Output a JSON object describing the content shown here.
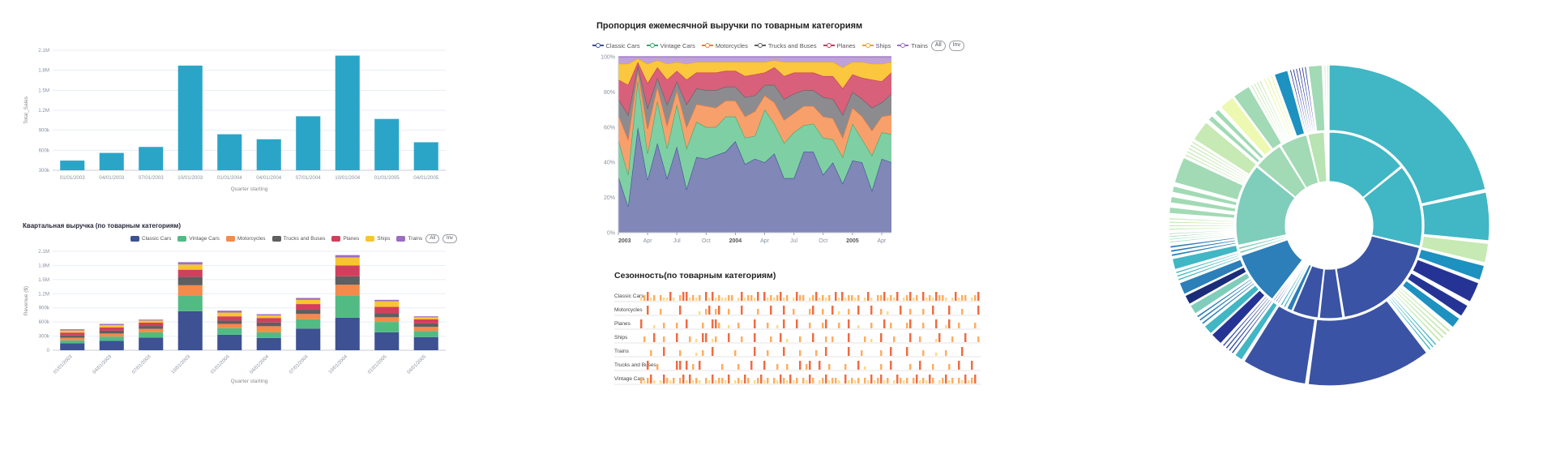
{
  "page": {
    "background": "#ffffff"
  },
  "legend_buttons": {
    "all": "All",
    "invert": "Inv"
  },
  "chart_data": [
    {
      "id": "quarterly-sales",
      "type": "bar",
      "title": "",
      "xlabel": "Quarter starting",
      "ylabel": "Total_Sales",
      "categories": [
        "01/01/2003",
        "04/01/2003",
        "07/01/2003",
        "10/01/2003",
        "01/01/2004",
        "04/01/2004",
        "07/01/2004",
        "10/01/2004",
        "01/01/2005",
        "04/01/2005"
      ],
      "values": [
        445000,
        560000,
        650000,
        1870000,
        840000,
        765000,
        1110000,
        2020000,
        1070000,
        720000
      ],
      "ylim": [
        300000,
        2100000
      ],
      "yticks": [
        {
          "v": 300000,
          "t": "300k"
        },
        {
          "v": 600000,
          "t": "600k"
        },
        {
          "v": 900000,
          "t": "900k"
        },
        {
          "v": 1200000,
          "t": "1.2M"
        },
        {
          "v": 1500000,
          "t": "1.5M"
        },
        {
          "v": 1800000,
          "t": "1.8M"
        },
        {
          "v": 2100000,
          "t": "2.1M"
        }
      ],
      "bar_color": "#2aa5c7",
      "grid": true
    },
    {
      "id": "quarterly-revenue",
      "type": "bar-stacked",
      "title": "Квартальная выручка (по товарным категориям)",
      "xlabel": "Quarter starting",
      "ylabel": "Revenue ($)",
      "categories": [
        "01/01/2003",
        "04/01/2003",
        "07/01/2003",
        "10/01/2003",
        "01/01/2004",
        "04/01/2004",
        "07/01/2004",
        "10/01/2004",
        "01/01/2005",
        "04/01/2005"
      ],
      "ylim": [
        0,
        2100000
      ],
      "yticks": [
        {
          "v": 0,
          "t": "0"
        },
        {
          "v": 300000,
          "t": "300k"
        },
        {
          "v": 600000,
          "t": "600k"
        },
        {
          "v": 900000,
          "t": "900k"
        },
        {
          "v": 1200000,
          "t": "1.2M"
        },
        {
          "v": 1500000,
          "t": "1.5M"
        },
        {
          "v": 1800000,
          "t": "1.8M"
        },
        {
          "v": 2100000,
          "t": "2.1M"
        }
      ],
      "series": [
        {
          "name": "Classic Cars",
          "color": "#3d5193",
          "values": [
            150000,
            200000,
            270000,
            830000,
            330000,
            260000,
            460000,
            690000,
            380000,
            280000
          ]
        },
        {
          "name": "Vintage Cars",
          "color": "#52bb84",
          "values": [
            60000,
            90000,
            110000,
            330000,
            140000,
            120000,
            200000,
            470000,
            220000,
            130000
          ]
        },
        {
          "name": "Motorcycles",
          "color": "#f58a4a",
          "values": [
            55000,
            65000,
            75000,
            220000,
            90000,
            130000,
            110000,
            230000,
            100000,
            85000
          ]
        },
        {
          "name": "Trucks and Buses",
          "color": "#5e5f61",
          "values": [
            50000,
            60000,
            60000,
            180000,
            70000,
            80000,
            90000,
            180000,
            90000,
            75000
          ]
        },
        {
          "name": "Planes",
          "color": "#d23f5c",
          "values": [
            60000,
            70000,
            70000,
            150000,
            90000,
            95000,
            120000,
            230000,
            130000,
            85000
          ]
        },
        {
          "name": "Ships",
          "color": "#f7c52f",
          "values": [
            45000,
            50000,
            45000,
            110000,
            80000,
            55000,
            90000,
            170000,
            120000,
            45000
          ]
        },
        {
          "name": "Trains",
          "color": "#9c6ec0",
          "values": [
            25000,
            25000,
            20000,
            50000,
            40000,
            25000,
            40000,
            50000,
            30000,
            20000
          ]
        }
      ],
      "legend_buttons": [
        "All",
        "Inv"
      ],
      "grid": true
    },
    {
      "id": "monthly-proportion",
      "type": "area",
      "title": "Пропорция ежемесячной выручки по товарным категориям",
      "x_ticks": [
        {
          "i": 0,
          "t": "2003",
          "bold": true
        },
        {
          "i": 3,
          "t": "Apr"
        },
        {
          "i": 6,
          "t": "Jul"
        },
        {
          "i": 9,
          "t": "Oct"
        },
        {
          "i": 12,
          "t": "2004",
          "bold": true
        },
        {
          "i": 15,
          "t": "Apr"
        },
        {
          "i": 18,
          "t": "Jul"
        },
        {
          "i": 21,
          "t": "Oct"
        },
        {
          "i": 24,
          "t": "2005",
          "bold": true
        },
        {
          "i": 27,
          "t": "Apr"
        }
      ],
      "y_ticks": [
        {
          "p": 0,
          "t": "0%"
        },
        {
          "p": 20,
          "t": "20%"
        },
        {
          "p": 40,
          "t": "40%"
        },
        {
          "p": 60,
          "t": "60%"
        },
        {
          "p": 80,
          "t": "80%"
        },
        {
          "p": 100,
          "t": "100%"
        }
      ],
      "series": [
        {
          "name": "Classic Cars",
          "fill": "#8187b7",
          "stroke": "#3f4e98",
          "values": [
            32,
            15,
            60,
            30,
            51,
            31,
            49,
            25,
            43,
            42,
            44,
            46,
            52,
            39,
            42,
            40,
            45,
            31,
            31,
            46,
            46,
            33,
            40,
            28,
            41,
            40,
            24,
            42,
            40
          ]
        },
        {
          "name": "Vintage Cars",
          "fill": "#7fcfa4",
          "stroke": "#3aa76d",
          "values": [
            21,
            18,
            27,
            15,
            24,
            17,
            24,
            23,
            20,
            18,
            16,
            20,
            14,
            15,
            13,
            30,
            17,
            20,
            26,
            15,
            16,
            21,
            13,
            15,
            21,
            13,
            20,
            15,
            16
          ]
        },
        {
          "name": "Motorcycles",
          "fill": "#f8a06b",
          "stroke": "#ef7b39",
          "values": [
            14,
            20,
            5,
            14,
            8,
            13,
            8,
            12,
            10,
            12,
            11,
            9,
            9,
            12,
            14,
            8,
            12,
            13,
            11,
            11,
            10,
            12,
            12,
            11,
            9,
            13,
            14,
            9,
            11
          ]
        },
        {
          "name": "Trucks and Buses",
          "fill": "#8c8c90",
          "stroke": "#5f5f63",
          "values": [
            9,
            14,
            3,
            12,
            5,
            12,
            5,
            13,
            9,
            9,
            10,
            8,
            8,
            11,
            9,
            6,
            10,
            12,
            11,
            9,
            9,
            11,
            11,
            13,
            9,
            10,
            13,
            8,
            12
          ]
        },
        {
          "name": "Planes",
          "fill": "#d9607a",
          "stroke": "#c43a59",
          "values": [
            11,
            17,
            2,
            14,
            6,
            14,
            6,
            14,
            9,
            10,
            10,
            9,
            9,
            12,
            12,
            7,
            10,
            13,
            12,
            10,
            10,
            12,
            13,
            15,
            10,
            12,
            16,
            12,
            12
          ]
        },
        {
          "name": "Ships",
          "fill": "#fac73e",
          "stroke": "#e8a818",
          "values": [
            9,
            12,
            2,
            11,
            4,
            9,
            5,
            9,
            6,
            6,
            6,
            5,
            5,
            8,
            7,
            6,
            4,
            8,
            6,
            6,
            6,
            8,
            8,
            12,
            7,
            9,
            9,
            10,
            6
          ]
        },
        {
          "name": "Trains",
          "fill": "#bfa1d9",
          "stroke": "#9a6fc2",
          "values": [
            4,
            4,
            1,
            4,
            2,
            4,
            3,
            4,
            3,
            3,
            3,
            3,
            3,
            3,
            3,
            3,
            2,
            3,
            3,
            3,
            3,
            3,
            3,
            6,
            3,
            3,
            4,
            4,
            3
          ]
        }
      ],
      "legend_buttons": [
        "All",
        "Inv"
      ]
    },
    {
      "id": "seasonality",
      "type": "heatmap",
      "title": "Сезонность(по товарным категориям)",
      "palette": {
        "1": "#feda84",
        "2": "#fdae61",
        "3": "#ef6c42",
        "4": "#cf3027"
      },
      "rows": [
        {
          "label": "Classic Cars",
          "pattern": "12312.21131.2331212.313121122.1312213.31212312.1322.1231212.31312212.131.2231213.12312.31213221.13122.123"
        },
        {
          "label": "Motorcycles",
          "pattern": "..3...2.....3.....1.23.23..2...3....2...3...3..2....23..2..3.1..2..3...3..2.1...3..2...2..3....3...2....3"
        },
        {
          "label": "Planes",
          "pattern": "3...1..2...2..3....2..332..1..2....3...2..1.3...3...2...23...2..3..1...2...3.2....23...2...3..13..2....2."
        },
        {
          "label": "Ships",
          "pattern": ".2..3..2...3...2.1.33.12...3...2...3....2..3.1...2...3...2.2....3....2.1..3...2....3..2....13...2...3...2"
        },
        {
          "label": "Trains",
          "pattern": "...2...3....2....1.2..3......2.....3...2....3....2....2..3......3...2.....2..3....3....2...1..2....3....."
        },
        {
          "label": "Trucks and Buses",
          "pattern": "..3..2.....33.3.2.3......2....2...3...3...2..2...3.23..3..2....2...3.1....2..3.....2..3...2....2..3...3.."
        },
        {
          "label": "Vintage Cars",
          "pattern": "21231.13212.2313121.21312213.12132.12312.21321312.2132.1231221.31212.21312312.13212.2312132.12312.213123."
        }
      ]
    },
    {
      "id": "revenue-sunburst",
      "type": "pie",
      "title": "",
      "rings": [
        "categories",
        "products"
      ],
      "segments": [
        {
          "r": "i",
          "s": 0,
          "e": 50.5,
          "c": "#41b6c4"
        },
        {
          "r": "i",
          "s": 51.5,
          "e": 103,
          "c": "#41b6c4"
        },
        {
          "r": "i",
          "s": 103.8,
          "e": 170.5,
          "c": "#3a53a4"
        },
        {
          "r": "i",
          "s": 171.5,
          "e": 186,
          "c": "#3a53a4"
        },
        {
          "r": "i",
          "s": 186.8,
          "e": 203,
          "c": "#3a53a4"
        },
        {
          "r": "i",
          "s": 203.6,
          "e": 207,
          "c": "#2c7fb8"
        },
        {
          "r": "i",
          "s": 207.6,
          "e": 212,
          "c": "#41b6c4",
          "n": 2
        },
        {
          "r": "i",
          "s": 212.6,
          "e": 217,
          "c": "#3a53a4",
          "n": 3
        },
        {
          "r": "i",
          "s": 217.6,
          "e": 251,
          "c": "#2c7fb8"
        },
        {
          "r": "i",
          "s": 251.8,
          "e": 257,
          "c": "#7fcdbb",
          "n": 2
        },
        {
          "r": "i",
          "s": 257.6,
          "e": 309,
          "c": "#7fcdbb"
        },
        {
          "r": "i",
          "s": 309.8,
          "e": 328,
          "c": "#a1dab4"
        },
        {
          "r": "i",
          "s": 328.8,
          "e": 346,
          "c": "#a1dab4"
        },
        {
          "r": "i",
          "s": 346.8,
          "e": 357,
          "c": "#b8e3b2"
        },
        {
          "r": "i",
          "s": 357.6,
          "e": 360,
          "c": "#c7e9b4",
          "n": 2
        },
        {
          "r": "o",
          "s": 0,
          "e": 77,
          "c": "#41b6c4"
        },
        {
          "r": "o",
          "s": 78,
          "e": 95.5,
          "c": "#41b6c4"
        },
        {
          "r": "o",
          "s": 96.5,
          "e": 103.5,
          "c": "#c7e9b4"
        },
        {
          "r": "o",
          "s": 104.5,
          "e": 110,
          "c": "#1d91c0"
        },
        {
          "r": "o",
          "s": 111,
          "e": 118.5,
          "c": "#253494"
        },
        {
          "r": "o",
          "s": 120,
          "e": 124.5,
          "c": "#253494"
        },
        {
          "r": "o",
          "s": 125.5,
          "e": 129.5,
          "c": "#1d91c0"
        },
        {
          "r": "o",
          "s": 130.5,
          "e": 137,
          "c": "#c7e9b4",
          "n": 4
        },
        {
          "r": "o",
          "s": 137.5,
          "e": 141.5,
          "c": "#41b6c4",
          "n": 3
        },
        {
          "r": "o",
          "s": 142.5,
          "e": 187.5,
          "c": "#3a53a4"
        },
        {
          "r": "o",
          "s": 188.5,
          "e": 212,
          "c": "#3a53a4"
        },
        {
          "r": "o",
          "s": 213,
          "e": 216,
          "c": "#41b6c4"
        },
        {
          "r": "o",
          "s": 216.5,
          "e": 222,
          "c": "#3a53a4",
          "n": 4
        },
        {
          "r": "o",
          "s": 222.5,
          "e": 227,
          "c": "#253494"
        },
        {
          "r": "o",
          "s": 227.5,
          "e": 231,
          "c": "#41b6c4"
        },
        {
          "r": "o",
          "s": 231.5,
          "e": 236,
          "c": "#2c7fb8",
          "n": 3
        },
        {
          "r": "o",
          "s": 236.5,
          "e": 240,
          "c": "#7fcdbb"
        },
        {
          "r": "o",
          "s": 240.5,
          "e": 244,
          "c": "#1b2d78"
        },
        {
          "r": "o",
          "s": 244.5,
          "e": 249,
          "c": "#2c7fb8"
        },
        {
          "r": "o",
          "s": 249.5,
          "e": 253.5,
          "c": "#41b6c4",
          "n": 3
        },
        {
          "r": "o",
          "s": 254,
          "e": 258,
          "c": "#41b6c4"
        },
        {
          "r": "o",
          "s": 258.5,
          "e": 263,
          "c": "#2c7fb8",
          "n": 3
        },
        {
          "r": "o",
          "s": 263.5,
          "e": 267.5,
          "c": "#a1dab4",
          "n": 4
        },
        {
          "r": "o",
          "s": 268,
          "e": 273,
          "c": "#c7e9b4",
          "n": 4
        },
        {
          "r": "o",
          "s": 273.5,
          "e": 285,
          "c": "#a1dab4",
          "n": 3
        },
        {
          "r": "o",
          "s": 285.5,
          "e": 295,
          "c": "#a1dab4"
        },
        {
          "r": "o",
          "s": 295.5,
          "e": 302,
          "c": "#c7e9b4",
          "n": 5
        },
        {
          "r": "o",
          "s": 302.5,
          "e": 310,
          "c": "#c7e9b4"
        },
        {
          "r": "o",
          "s": 310.5,
          "e": 317,
          "c": "#a1dab4",
          "n": 2
        },
        {
          "r": "o",
          "s": 317.5,
          "e": 323,
          "c": "#edf8b1"
        },
        {
          "r": "o",
          "s": 323.5,
          "e": 330,
          "c": "#a1dab4"
        },
        {
          "r": "o",
          "s": 330.5,
          "e": 335,
          "c": "#c7e9b4",
          "n": 4
        },
        {
          "r": "o",
          "s": 335.5,
          "e": 339.5,
          "c": "#edf8b1",
          "n": 3
        },
        {
          "r": "o",
          "s": 340,
          "e": 345,
          "c": "#1d91c0"
        },
        {
          "r": "o",
          "s": 345.5,
          "e": 352,
          "c": "#253494",
          "n": 6
        },
        {
          "r": "o",
          "s": 352.5,
          "e": 357.5,
          "c": "#a1dab4"
        },
        {
          "r": "o",
          "s": 358,
          "e": 360,
          "c": "#c7e9b4",
          "n": 2
        }
      ]
    }
  ]
}
